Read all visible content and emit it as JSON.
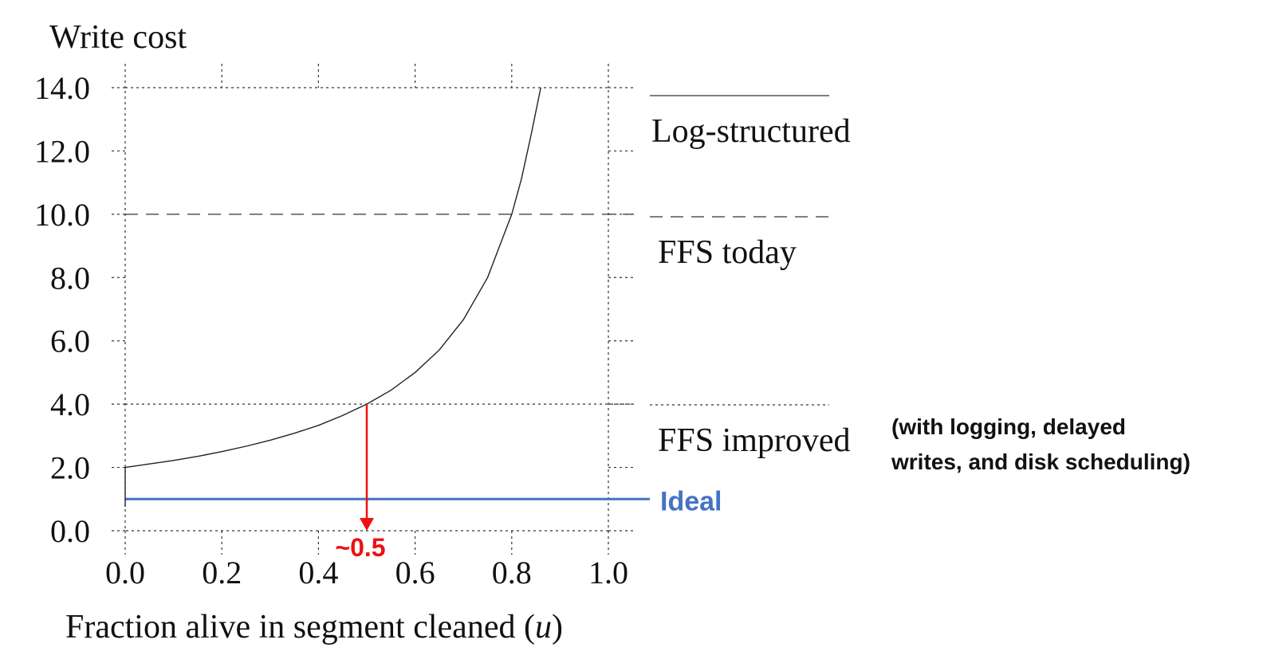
{
  "chart_data": {
    "type": "line",
    "ylabel": "Write cost",
    "xlabel": "Fraction alive in segment cleaned (u)",
    "xlim": [
      0.0,
      1.0
    ],
    "ylim": [
      0.0,
      14.0
    ],
    "x_ticks": [
      "0.0",
      "0.2",
      "0.4",
      "0.6",
      "0.8",
      "1.0"
    ],
    "y_ticks": [
      "0.0",
      "2.0",
      "4.0",
      "6.0",
      "8.0",
      "10.0",
      "12.0",
      "14.0"
    ],
    "grid": "dotted",
    "series": [
      {
        "name": "Log-structured",
        "style": "solid",
        "x": [
          0.0,
          0.05,
          0.1,
          0.15,
          0.2,
          0.25,
          0.3,
          0.35,
          0.4,
          0.45,
          0.5,
          0.55,
          0.6,
          0.65,
          0.7,
          0.75,
          0.8,
          0.82,
          0.84,
          0.86
        ],
        "y": [
          2.0,
          2.11,
          2.22,
          2.35,
          2.5,
          2.67,
          2.86,
          3.08,
          3.33,
          3.64,
          4.0,
          4.44,
          5.0,
          5.71,
          6.67,
          8.0,
          10.0,
          11.11,
          12.5,
          14.29
        ]
      }
    ],
    "reference_lines": [
      {
        "name": "FFS today",
        "y": 10.0,
        "style": "dashed"
      },
      {
        "name": "FFS improved",
        "y": 4.0,
        "style": "dotted"
      },
      {
        "name": "Ideal",
        "y": 1.0,
        "style": "solid",
        "color": "#4472C4"
      }
    ],
    "legend": [
      {
        "label": "Log-structured",
        "style": "solid"
      },
      {
        "label": "FFS today",
        "style": "dashed"
      },
      {
        "label": "FFS improved",
        "style": "dotted",
        "note": "(with logging, delayed writes, and disk scheduling)"
      }
    ],
    "annotation": {
      "text": "~0.5",
      "x": 0.5,
      "from_y": 4.0,
      "color": "#EE1111"
    }
  },
  "colors": {
    "curve": "#222222",
    "ideal": "#4472C4",
    "annotation": "#EE1111",
    "grid": "#333333"
  }
}
